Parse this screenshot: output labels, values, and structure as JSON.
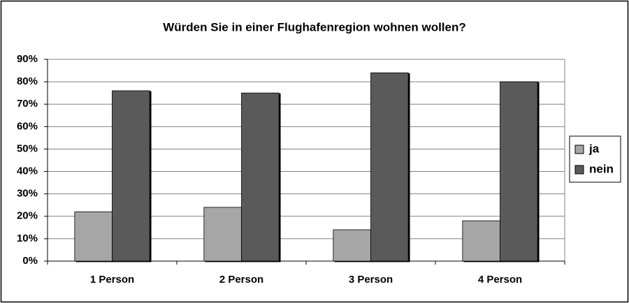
{
  "chart_data": {
    "type": "bar",
    "title": "Würden Sie in einer Flughafenregion wohnen wollen?",
    "categories": [
      "1 Person",
      "2 Person",
      "3 Person",
      "4 Person"
    ],
    "series": [
      {
        "name": "ja",
        "color": "#a6a6a6",
        "values": [
          22,
          24,
          14,
          18
        ]
      },
      {
        "name": "nein",
        "color": "#5a5a5a",
        "values": [
          76,
          75,
          84,
          80
        ]
      }
    ],
    "ylim": [
      0,
      90
    ],
    "yticks": [
      {
        "value": 0,
        "label": "0%"
      },
      {
        "value": 10,
        "label": "10%"
      },
      {
        "value": 20,
        "label": "20%"
      },
      {
        "value": 30,
        "label": "30%"
      },
      {
        "value": 40,
        "label": "40%"
      },
      {
        "value": 50,
        "label": "50%"
      },
      {
        "value": 60,
        "label": "60%"
      },
      {
        "value": 70,
        "label": "70%"
      },
      {
        "value": 80,
        "label": "80%"
      },
      {
        "value": 90,
        "label": "90%"
      }
    ],
    "grid": true,
    "legend": "right"
  }
}
